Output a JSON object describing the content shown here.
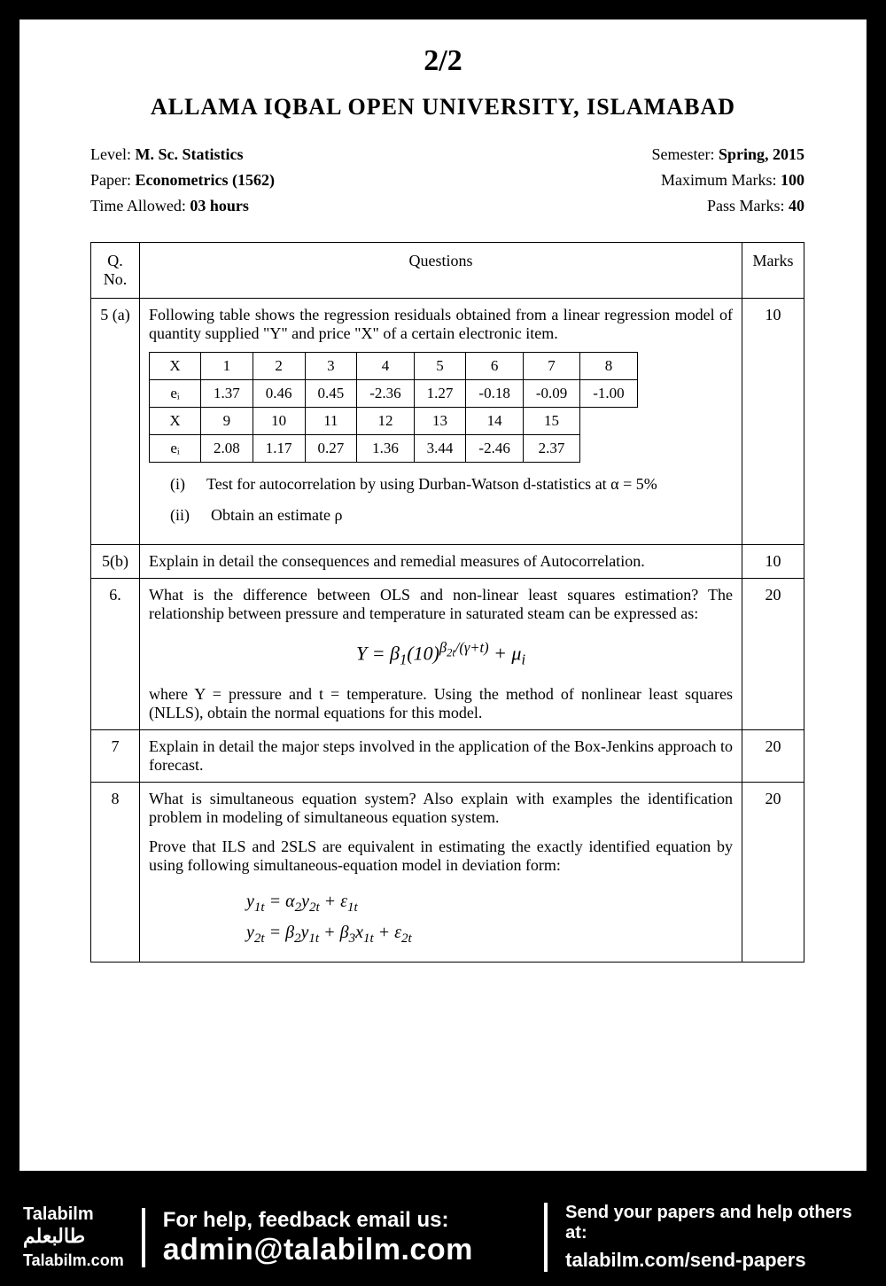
{
  "page_indicator": "2/2",
  "university": "ALLAMA IQBAL OPEN UNIVERSITY, ISLAMABAD",
  "meta": {
    "level_label": "Level:",
    "level_value": "M. Sc. Statistics",
    "semester_label": "Semester:",
    "semester_value": "Spring, 2015",
    "paper_label": "Paper:",
    "paper_value": "Econometrics (1562)",
    "maxmarks_label": "Maximum Marks:",
    "maxmarks_value": "100",
    "time_label": "Time Allowed:",
    "time_value": "03 hours",
    "passmarks_label": "Pass Marks:",
    "passmarks_value": "40"
  },
  "header": {
    "qno": "Q. No.",
    "questions": "Questions",
    "marks": "Marks"
  },
  "q5a": {
    "no": "5 (a)",
    "intro": "Following table shows the regression residuals obtained from a linear regression model of quantity supplied \"Y\" and price \"X\" of a certain electronic item.",
    "marks": "10",
    "table": {
      "rows": [
        [
          "X",
          "1",
          "2",
          "3",
          "4",
          "5",
          "6",
          "7",
          "8"
        ],
        [
          "eᵢ",
          "1.37",
          "0.46",
          "0.45",
          "-2.36",
          "1.27",
          "-0.18",
          "-0.09",
          "-1.00"
        ],
        [
          "X",
          "9",
          "10",
          "11",
          "12",
          "13",
          "14",
          "15",
          ""
        ],
        [
          "eᵢ",
          "2.08",
          "1.17",
          "0.27",
          "1.36",
          "3.44",
          "-2.46",
          "2.37",
          ""
        ]
      ]
    },
    "sub_i_label": "(i)",
    "sub_i_text": "Test for autocorrelation by using Durban-Watson d-statistics at α = 5%",
    "sub_ii_label": "(ii)",
    "sub_ii_text": "Obtain an estimate ρ"
  },
  "q5b": {
    "no": "5(b)",
    "text": "Explain in detail the consequences and remedial measures of Autocorrelation.",
    "marks": "10"
  },
  "q6": {
    "no": "6.",
    "text1": "What is the difference between OLS and non-linear least squares estimation? The relationship between pressure and temperature in saturated steam can be expressed as:",
    "formula": "Y = β₁(10)^(β₂t/(γ+t)) + μᵢ",
    "text2": "where Y = pressure and t = temperature. Using the method of nonlinear least squares (NLLS), obtain the normal equations for this model.",
    "marks": "20"
  },
  "q7": {
    "no": "7",
    "text": "Explain in detail the major steps involved in the application of the Box-Jenkins approach to forecast.",
    "marks": "20"
  },
  "q8": {
    "no": "8",
    "text1": "What is simultaneous equation system? Also explain with examples the identification problem in modeling of simultaneous equation system.",
    "text2": "Prove that ILS and 2SLS are equivalent in estimating the exactly identified equation by using following simultaneous-equation model in deviation form:",
    "formula1": "y₁ₜ = α₂y₂ₜ + ε₁ₜ",
    "formula2": "y₂ₜ = β₂y₁ₜ + β₃x₁ₜ + ε₂ₜ",
    "marks": "20"
  },
  "footer": {
    "logo1": "Talabilm",
    "logo2": "طالبعلم",
    "logo3": "Talabilm.com",
    "mid1": "For help, feedback email us:",
    "mid2": "admin@talabilm.com",
    "right1": "Send your papers and help others at:",
    "right2": "talabilm.com/send-papers"
  },
  "colors": {
    "background": "#000000",
    "page": "#ffffff",
    "text": "#000000",
    "footer_text": "#ffffff"
  }
}
